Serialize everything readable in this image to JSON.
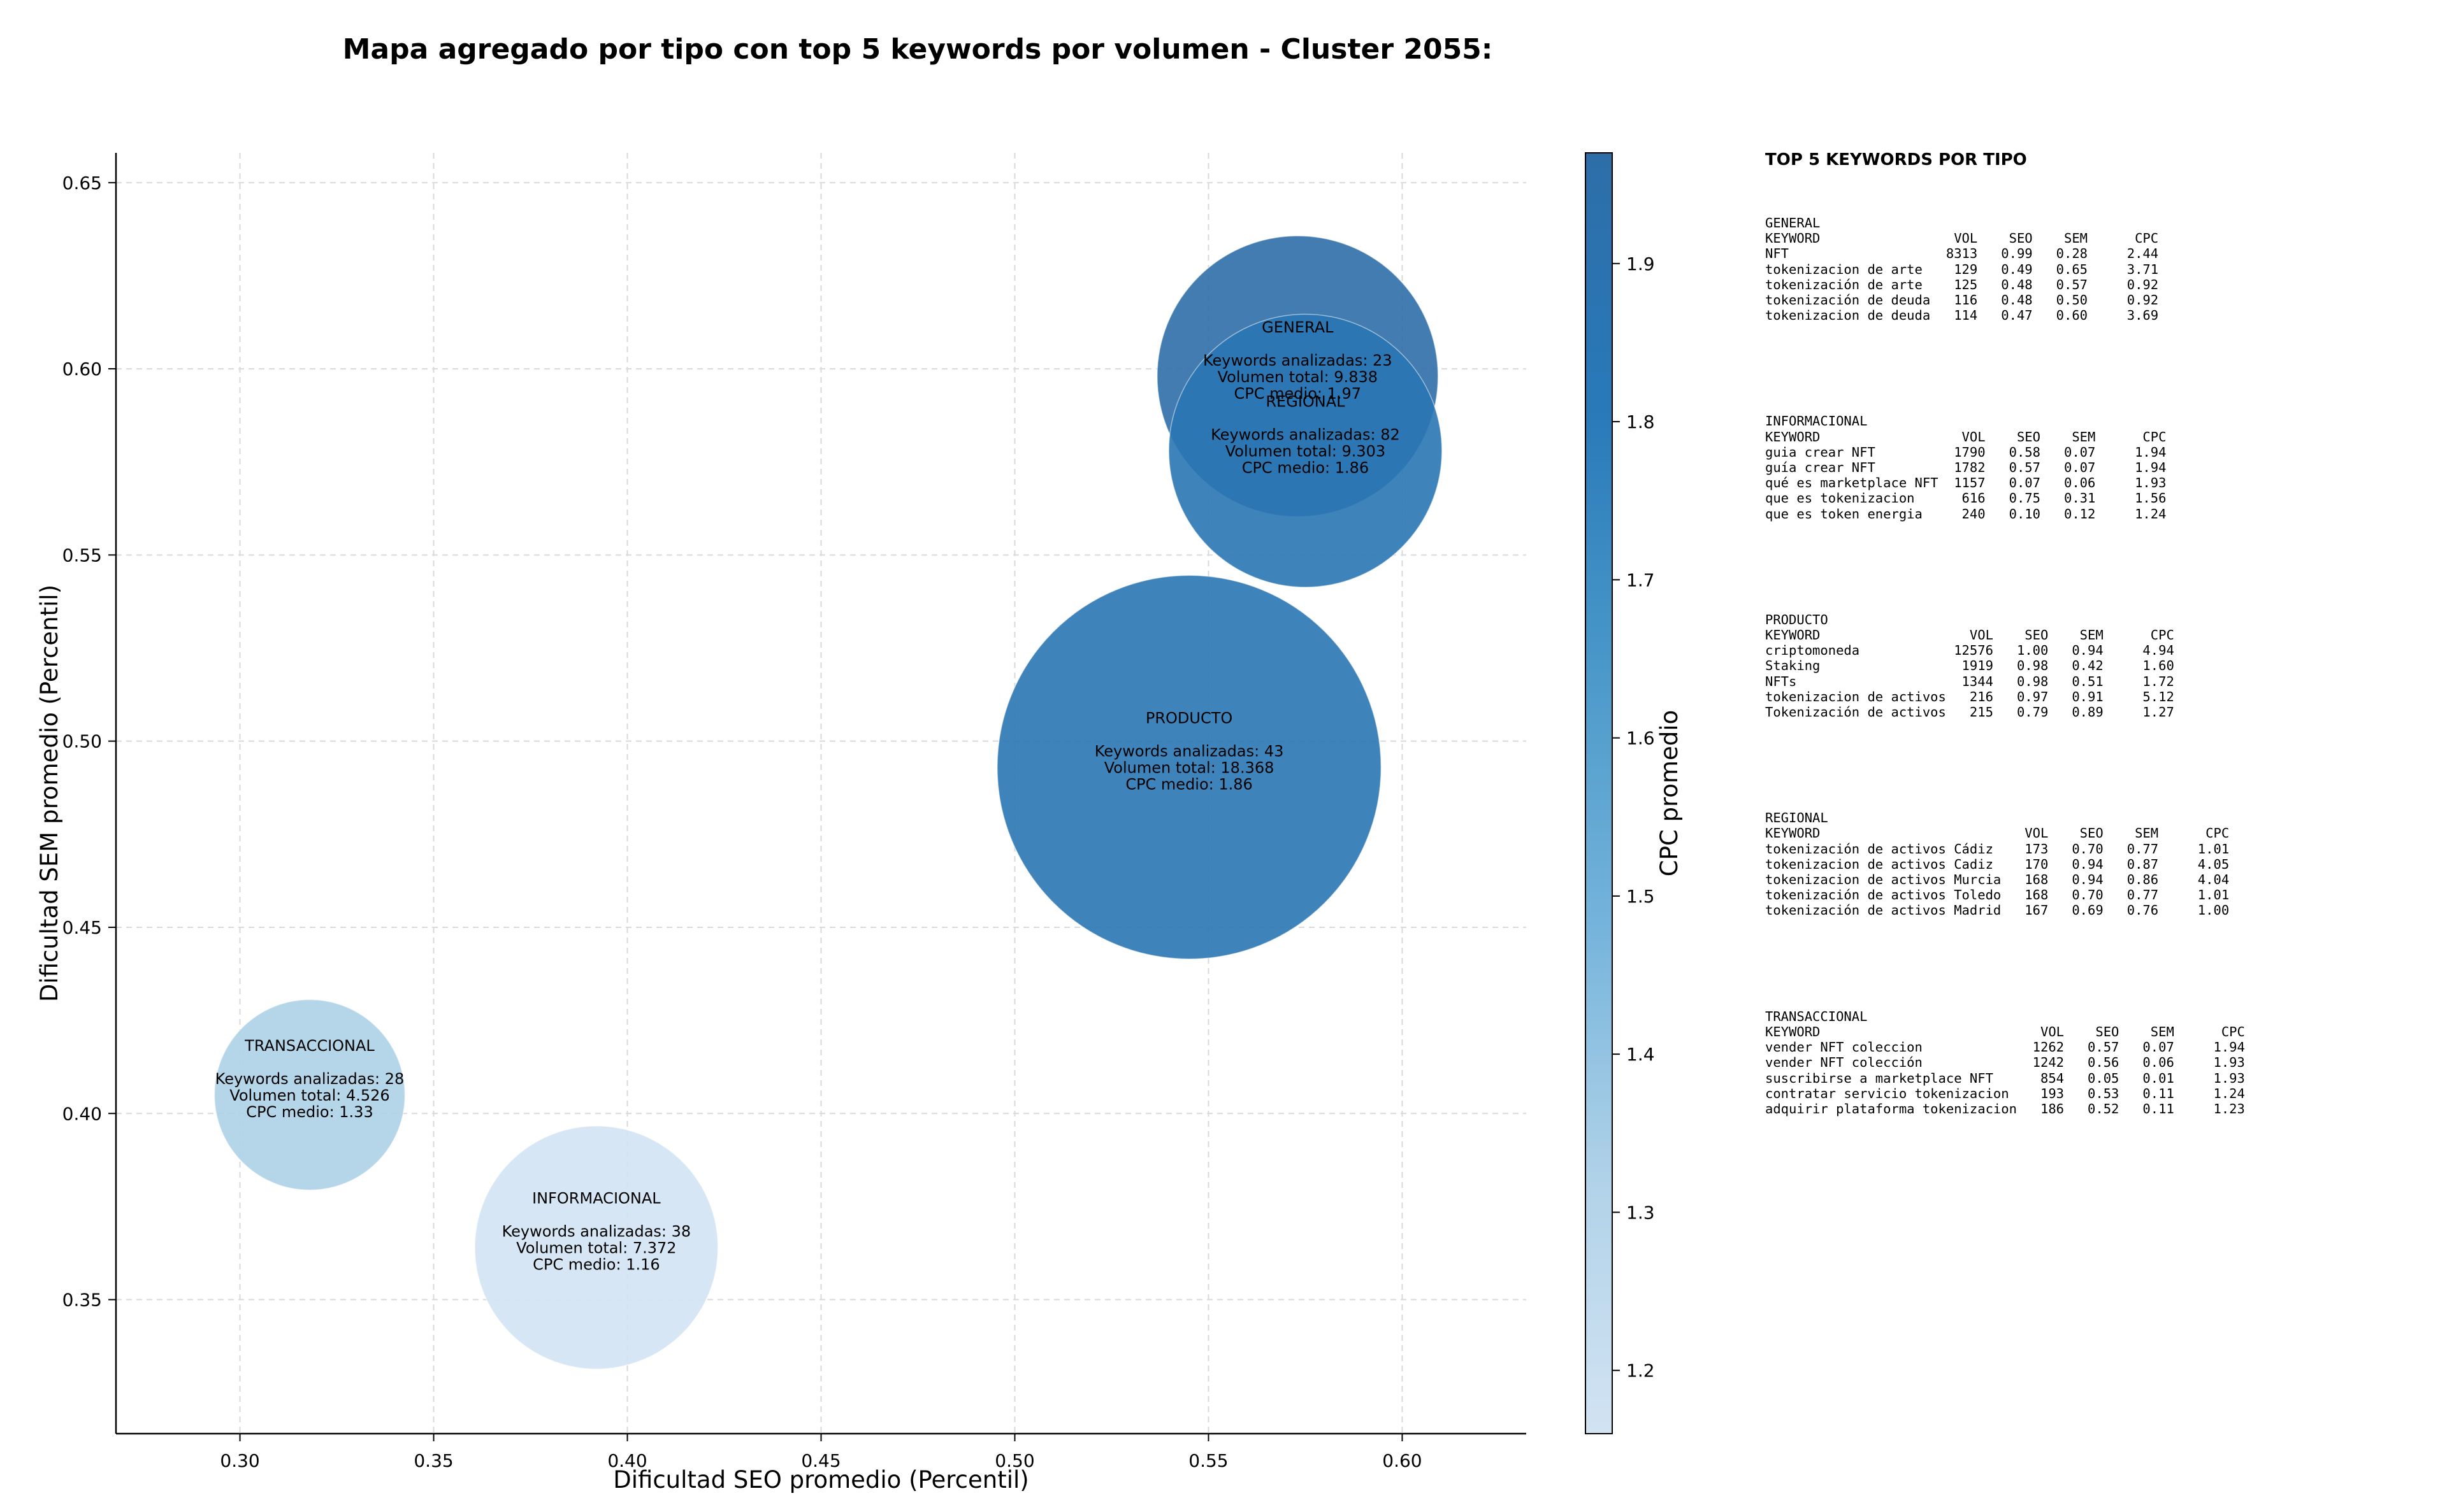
{
  "chart_data": {
    "type": "scatter",
    "title": "Mapa agregado por tipo con top 5 keywords por volumen - Cluster 2055:",
    "xlabel": "Dificultad SEO promedio (Percentil)",
    "ylabel": "Dificultad SEM promedio (Percentil)",
    "xlim": [
      0.268,
      0.632
    ],
    "ylim": [
      0.314,
      0.658
    ],
    "xticks": [
      "0.30",
      "0.35",
      "0.40",
      "0.45",
      "0.50",
      "0.55",
      "0.60"
    ],
    "yticks": [
      "0.35",
      "0.40",
      "0.45",
      "0.50",
      "0.55",
      "0.60",
      "0.65"
    ],
    "grid": true,
    "colorbar": {
      "label": "CPC promedio",
      "min": 1.16,
      "max": 1.97,
      "ticks": [
        "1.2",
        "1.3",
        "1.4",
        "1.5",
        "1.6",
        "1.7",
        "1.8",
        "1.9"
      ],
      "colors": [
        "#d2e3f3",
        "#b0d2e8",
        "#74b3db",
        "#4a98c9",
        "#2979b9",
        "#2d6ea8"
      ]
    },
    "points": [
      {
        "name": "GENERAL",
        "x": 0.573,
        "y": 0.598,
        "size": 23,
        "volume": "9.838",
        "cpc": 1.97,
        "lines": [
          "GENERAL",
          "Keywords analizadas: 23",
          "Volumen total: 9.838",
          "CPC medio: 1.97"
        ]
      },
      {
        "name": "REGIONAL",
        "x": 0.575,
        "y": 0.578,
        "size": 82,
        "volume": "9.303",
        "cpc": 1.86,
        "lines": [
          "REGIONAL",
          "Keywords analizadas: 82",
          "Volumen total: 9.303",
          "CPC medio: 1.86"
        ]
      },
      {
        "name": "PRODUCTO",
        "x": 0.545,
        "y": 0.493,
        "size": 43,
        "volume": "18.368",
        "cpc": 1.86,
        "lines": [
          "PRODUCTO",
          "Keywords analizadas: 43",
          "Volumen total: 18.368",
          "CPC medio: 1.86"
        ]
      },
      {
        "name": "TRANSACCIONAL",
        "x": 0.318,
        "y": 0.405,
        "size": 28,
        "volume": "4.526",
        "cpc": 1.33,
        "lines": [
          "TRANSACCIONAL",
          "Keywords analizadas: 28",
          "Volumen total: 4.526",
          "CPC medio: 1.33"
        ]
      },
      {
        "name": "INFORMACIONAL",
        "x": 0.392,
        "y": 0.364,
        "size": 38,
        "volume": "7.372",
        "cpc": 1.16,
        "lines": [
          "INFORMACIONAL",
          "Keywords analizadas: 38",
          "Volumen total: 7.372",
          "CPC medio: 1.16"
        ]
      }
    ]
  },
  "panel": {
    "title": "TOP 5 KEYWORDS POR TIPO",
    "blocks": [
      {
        "name": "GENERAL",
        "text": "GENERAL\nKEYWORD                 VOL    SEO    SEM      CPC\nNFT                    8313   0.99   0.28     2.44\ntokenizacion de arte    129   0.49   0.65     3.71\ntokenización de arte    125   0.48   0.57     0.92\ntokenización de deuda   116   0.48   0.50     0.92\ntokenizacion de deuda   114   0.47   0.60     3.69"
      },
      {
        "name": "INFORMACIONAL",
        "text": "INFORMACIONAL\nKEYWORD                  VOL    SEO    SEM      CPC\nguia crear NFT          1790   0.58   0.07     1.94\nguía crear NFT          1782   0.57   0.07     1.94\nqué es marketplace NFT  1157   0.07   0.06     1.93\nque es tokenizacion      616   0.75   0.31     1.56\nque es token energia     240   0.10   0.12     1.24"
      },
      {
        "name": "PRODUCTO",
        "text": "PRODUCTO\nKEYWORD                   VOL    SEO    SEM      CPC\ncriptomoneda            12576   1.00   0.94     4.94\nStaking                  1919   0.98   0.42     1.60\nNFTs                     1344   0.98   0.51     1.72\ntokenizacion de activos   216   0.97   0.91     5.12\nTokenización de activos   215   0.79   0.89     1.27"
      },
      {
        "name": "REGIONAL",
        "text": "REGIONAL\nKEYWORD                          VOL    SEO    SEM      CPC\ntokenización de activos Cádiz    173   0.70   0.77     1.01\ntokenizacion de activos Cadiz    170   0.94   0.87     4.05\ntokenizacion de activos Murcia   168   0.94   0.86     4.04\ntokenización de activos Toledo   168   0.70   0.77     1.01\ntokenización de activos Madrid   167   0.69   0.76     1.00"
      },
      {
        "name": "TRANSACCIONAL",
        "text": "TRANSACCIONAL\nKEYWORD                            VOL    SEO    SEM      CPC\nvender NFT coleccion              1262   0.57   0.07     1.94\nvender NFT colección              1242   0.56   0.06     1.93\nsuscribirse a marketplace NFT      854   0.05   0.01     1.93\ncontratar servicio tokenizacion    193   0.53   0.11     1.24\nadquirir plataforma tokenizacion   186   0.52   0.11     1.23"
      }
    ]
  }
}
